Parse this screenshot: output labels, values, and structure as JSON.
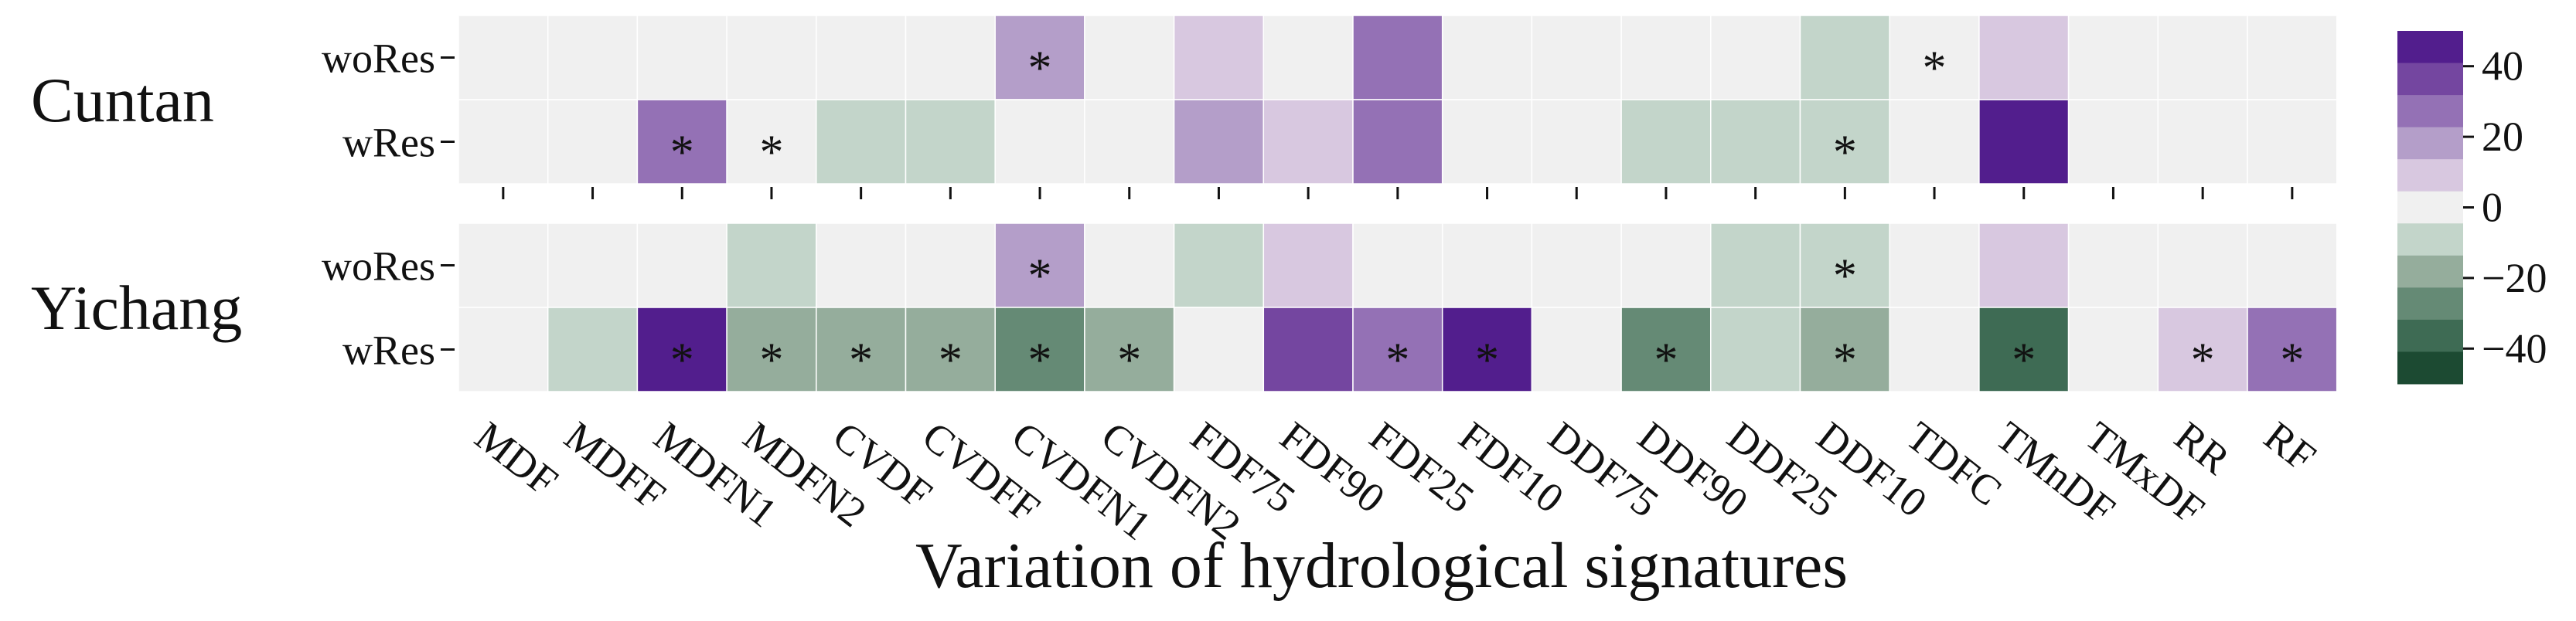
{
  "chart_data": {
    "type": "heatmap",
    "xlabel": "Variation of hydrological signatures",
    "categories": [
      "MDF",
      "MDFF",
      "MDFN1",
      "MDFN2",
      "CVDF",
      "CVDFF",
      "CVDFN1",
      "CVDFN2",
      "FDF75",
      "FDF90",
      "FDF25",
      "FDF10",
      "DDF75",
      "DDF90",
      "DDF25",
      "DDF10",
      "TDFC",
      "TMnDF",
      "TMxDF",
      "RR",
      "RF"
    ],
    "colorbar": {
      "ticks": [
        40,
        20,
        0,
        -20,
        -40
      ],
      "tick_labels": [
        "40",
        "20",
        "0",
        "−20",
        "−40"
      ],
      "range": [
        -50,
        50
      ],
      "step": 10,
      "colors": [
        "#1c4a32",
        "#3e6b54",
        "#658a75",
        "#95ad9c",
        "#c3d5ca",
        "#f0f0f0",
        "#d8c8e0",
        "#b49ec9",
        "#9471b5",
        "#7446a0",
        "#521e8d"
      ]
    },
    "panels": [
      {
        "station": "Cuntan",
        "rows": [
          {
            "label": "woRes",
            "values": [
              0,
              0,
              0,
              0,
              0,
              0,
              15,
              0,
              10,
              0,
              30,
              0,
              0,
              0,
              0,
              -10,
              0,
              10,
              0,
              0,
              0
            ],
            "significant": [
              false,
              false,
              false,
              false,
              false,
              false,
              true,
              false,
              false,
              false,
              false,
              false,
              false,
              false,
              false,
              false,
              true,
              false,
              false,
              false,
              false
            ]
          },
          {
            "label": "wRes",
            "values": [
              0,
              0,
              30,
              -5,
              -10,
              -10,
              0,
              0,
              20,
              10,
              30,
              0,
              0,
              -10,
              -10,
              -10,
              0,
              45,
              0,
              0,
              0
            ],
            "significant": [
              false,
              false,
              true,
              true,
              false,
              false,
              false,
              false,
              false,
              false,
              false,
              false,
              false,
              false,
              false,
              true,
              false,
              false,
              false,
              false,
              false
            ]
          }
        ]
      },
      {
        "station": "Yichang",
        "rows": [
          {
            "label": "woRes",
            "values": [
              0,
              0,
              0,
              -10,
              0,
              0,
              20,
              0,
              -10,
              10,
              0,
              0,
              0,
              0,
              -10,
              -10,
              0,
              10,
              0,
              0,
              0
            ],
            "significant": [
              false,
              false,
              false,
              false,
              false,
              false,
              true,
              false,
              false,
              false,
              false,
              false,
              false,
              false,
              false,
              true,
              false,
              false,
              false,
              false,
              false
            ]
          },
          {
            "label": "wRes",
            "values": [
              0,
              -10,
              45,
              -20,
              -20,
              -20,
              -30,
              -20,
              0,
              40,
              30,
              45,
              0,
              -30,
              -10,
              -20,
              0,
              -40,
              0,
              10,
              30
            ],
            "significant": [
              false,
              false,
              true,
              true,
              true,
              true,
              true,
              true,
              false,
              false,
              true,
              true,
              false,
              true,
              false,
              true,
              false,
              true,
              false,
              true,
              true
            ]
          }
        ]
      }
    ]
  }
}
